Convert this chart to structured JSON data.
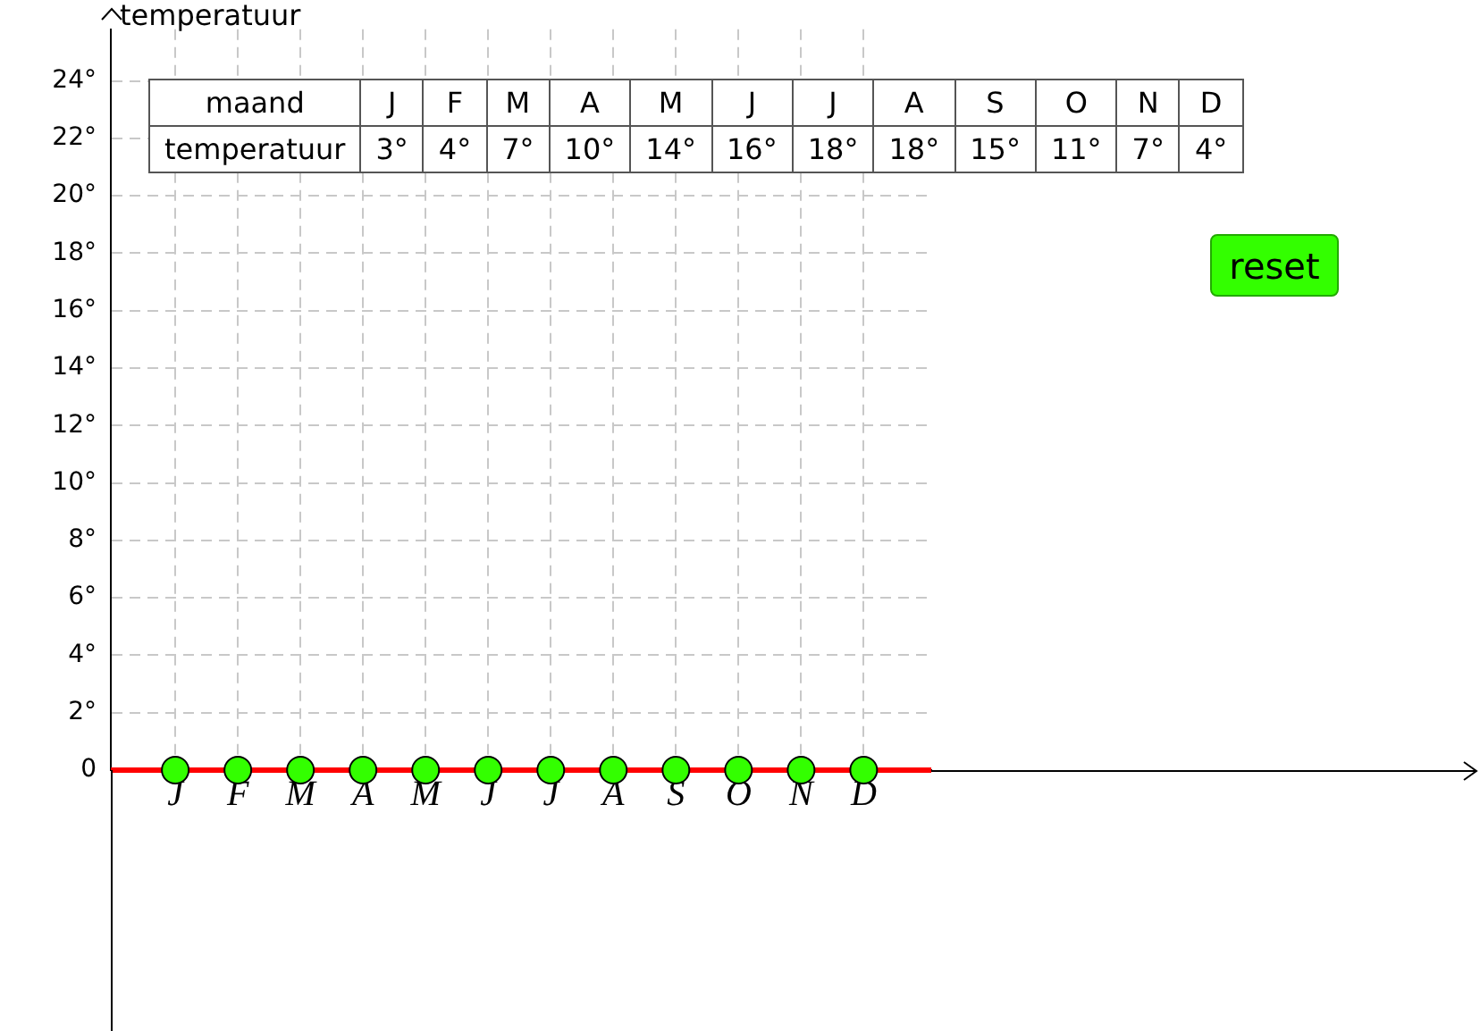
{
  "chart_data": {
    "type": "scatter",
    "ylabel": "temperatuur",
    "categories": [
      "J",
      "F",
      "M",
      "A",
      "M",
      "J",
      "J",
      "A",
      "S",
      "O",
      "N",
      "D"
    ],
    "series": [
      {
        "color": "#33ff00",
        "values": [
          0,
          0,
          0,
          0,
          0,
          0,
          0,
          0,
          0,
          0,
          0,
          0
        ]
      }
    ],
    "marker": "circle",
    "ylim": [
      0,
      25.8
    ],
    "yticks": [
      0,
      {
        "value": 2,
        "label": "2°"
      },
      {
        "value": 4,
        "label": "4°"
      },
      {
        "value": 6,
        "label": "6°"
      },
      {
        "value": 8,
        "label": "8°"
      },
      {
        "value": 10,
        "label": "10°"
      },
      {
        "value": 12,
        "label": "12°"
      },
      {
        "value": 14,
        "label": "14°"
      },
      {
        "value": 16,
        "label": "16°"
      },
      {
        "value": 18,
        "label": "18°"
      },
      {
        "value": 20,
        "label": "20°"
      },
      {
        "value": 22,
        "label": "22°"
      },
      {
        "value": 24,
        "label": "24°"
      }
    ],
    "ref_lines": [
      {
        "axis": "y",
        "value": 0,
        "color": "#ff0000"
      }
    ],
    "grid": true,
    "annotations": [
      "reset",
      "maand",
      "J",
      "F",
      "M",
      "A",
      "M",
      "J",
      "J",
      "A",
      "S",
      "O",
      "N",
      "D",
      "temperatuur",
      "3°",
      "4°",
      "7°",
      "10°",
      "14°",
      "16°",
      "18°",
      "18°",
      "15°",
      "11°",
      "7°",
      "4°"
    ]
  }
}
